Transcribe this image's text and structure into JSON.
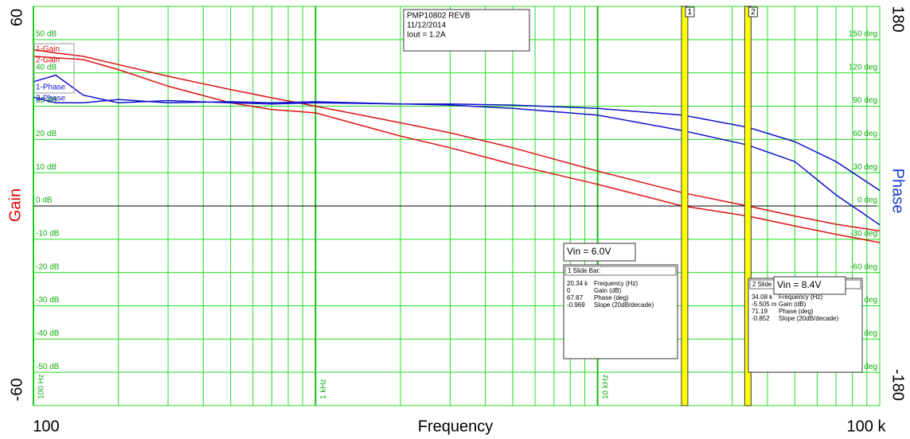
{
  "chart_data": {
    "type": "line",
    "x_label": "Frequency",
    "y_label": "Gain",
    "y2_label": "Phase",
    "x_scale": "log",
    "grid": true,
    "grid_color": "#22dd22",
    "zero_line": true,
    "xlim": [
      100,
      100000
    ],
    "x_max_label": "100 k",
    "xticks": [
      {
        "value": 100,
        "label": "100 Hz"
      },
      {
        "value": 1000,
        "label": "1 kHz"
      },
      {
        "value": 10000,
        "label": "10 kHz"
      }
    ],
    "ylim": [
      -60,
      60
    ],
    "yticks": [
      {
        "value": 50,
        "label": "50 dB"
      },
      {
        "value": 40,
        "label": "40 dB"
      },
      {
        "value": 30,
        "label": "30 dB"
      },
      {
        "value": 20,
        "label": "20 dB"
      },
      {
        "value": 10,
        "label": "10 dB"
      },
      {
        "value": 0,
        "label": "0 dB"
      },
      {
        "value": -10,
        "label": "-10 dB"
      },
      {
        "value": -20,
        "label": "-20 dB"
      },
      {
        "value": -30,
        "label": "-30 dB"
      },
      {
        "value": -40,
        "label": "-40 dB"
      },
      {
        "value": -50,
        "label": "-50 dB"
      }
    ],
    "y2lim": [
      -180,
      180
    ],
    "y2ticks": [
      {
        "value": 150,
        "label": "150 deg"
      },
      {
        "value": 120,
        "label": "120 deg"
      },
      {
        "value": 90,
        "label": "90 deg"
      },
      {
        "value": 60,
        "label": "60 deg"
      },
      {
        "value": 30,
        "label": "30 deg"
      },
      {
        "value": 0,
        "label": "0 deg"
      },
      {
        "value": -30,
        "label": "-30 deg"
      },
      {
        "value": -60,
        "label": "-60 deg"
      },
      {
        "value": -90,
        "label": "-90 deg"
      },
      {
        "value": -120,
        "label": "-120 deg"
      },
      {
        "value": -150,
        "label": "-150 deg"
      }
    ],
    "x": [
      100,
      120,
      150,
      200,
      300,
      500,
      700,
      1000,
      2000,
      3000,
      5000,
      10000,
      20000,
      34000,
      50000,
      70000,
      100000
    ],
    "series": [
      {
        "name": "1-Gain",
        "color": "#dd1111",
        "axis": "y",
        "values": [
          45,
          44.5,
          44,
          41,
          36,
          31,
          29,
          28,
          21,
          17.5,
          12.5,
          6.5,
          0,
          -3,
          -6,
          -8.5,
          -11
        ]
      },
      {
        "name": "2-Gain",
        "color": "#dd1111",
        "axis": "y",
        "values": [
          47,
          46,
          45,
          42.5,
          39,
          35,
          32.5,
          30,
          25,
          22,
          17.5,
          10.5,
          4,
          0,
          -3,
          -5.5,
          -7.5
        ]
      },
      {
        "name": "1-Phase",
        "color": "#1111cc",
        "axis": "y2",
        "values": [
          112,
          118,
          100,
          93,
          95,
          93,
          92,
          93,
          92,
          91,
          88,
          82,
          68,
          55,
          40,
          10,
          -17
        ]
      },
      {
        "name": "2-Phase",
        "color": "#1111cc",
        "axis": "y2",
        "values": [
          98,
          93,
          93,
          96,
          93,
          94,
          93,
          94,
          92,
          92,
          91,
          88,
          82,
          71,
          58,
          40,
          14
        ]
      }
    ],
    "info_lines": [
      "PMP10802 REVB",
      "11/12/2014",
      "Iout = 1.2A"
    ],
    "cursors": [
      {
        "label": "1",
        "x": 20340,
        "box_title": "Vin = 6.0V",
        "header": "1  Slide Bar:",
        "rows": [
          [
            "20.34 k",
            "Frequency (Hz)"
          ],
          [
            "0",
            "Gain (dB)"
          ],
          [
            "67.87",
            "Phase (deg)"
          ],
          [
            "-0.969",
            "Slope (20dB/decade)"
          ]
        ]
      },
      {
        "label": "2",
        "x": 34080,
        "box_title": "Vin = 8.4V",
        "header": "2  Slide Bar:",
        "rows": [
          [
            "34.08 k",
            "Frequency (Hz)"
          ],
          [
            "-5.505 m",
            "Gain (dB)"
          ],
          [
            "71.19",
            "Phase (deg)"
          ],
          [
            "-0.852",
            "Slope (20dB/decade)"
          ]
        ]
      }
    ],
    "cursor_color": "#ffff00"
  }
}
